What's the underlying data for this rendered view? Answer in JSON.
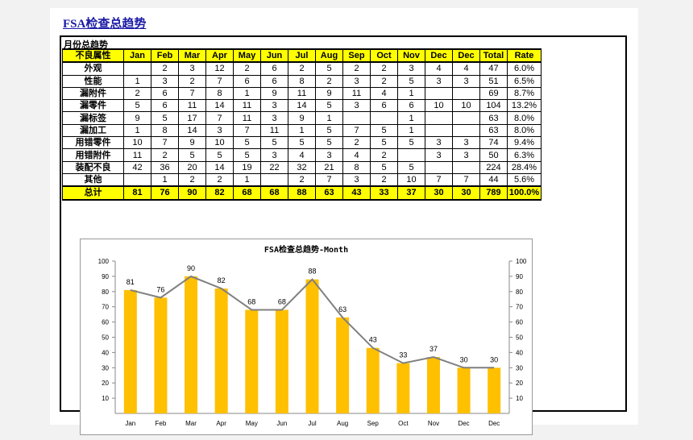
{
  "title": "FSA检查总趋势",
  "table": {
    "caption": "月份总趋势",
    "headers": [
      "不良属性",
      "Jan",
      "Feb",
      "Mar",
      "Apr",
      "May",
      "Jun",
      "Jul",
      "Aug",
      "Sep",
      "Oct",
      "Nov",
      "Dec",
      "Dec",
      "Total",
      "Rate"
    ],
    "rows": [
      [
        "外观",
        "",
        "2",
        "3",
        "12",
        "2",
        "6",
        "2",
        "5",
        "2",
        "2",
        "3",
        "4",
        "4",
        "47",
        "6.0%"
      ],
      [
        "性能",
        "1",
        "3",
        "2",
        "7",
        "6",
        "6",
        "8",
        "2",
        "3",
        "2",
        "5",
        "3",
        "3",
        "51",
        "6.5%"
      ],
      [
        "漏附件",
        "2",
        "6",
        "7",
        "8",
        "1",
        "9",
        "11",
        "9",
        "11",
        "4",
        "1",
        "",
        "",
        "69",
        "8.7%"
      ],
      [
        "漏零件",
        "5",
        "6",
        "11",
        "14",
        "11",
        "3",
        "14",
        "5",
        "3",
        "6",
        "6",
        "10",
        "10",
        "104",
        "13.2%"
      ],
      [
        "漏标签",
        "9",
        "5",
        "17",
        "7",
        "11",
        "3",
        "9",
        "1",
        "",
        "",
        "1",
        "",
        "",
        "63",
        "8.0%"
      ],
      [
        "漏加工",
        "1",
        "8",
        "14",
        "3",
        "7",
        "11",
        "1",
        "5",
        "7",
        "5",
        "1",
        "",
        "",
        "63",
        "8.0%"
      ],
      [
        "用错零件",
        "10",
        "7",
        "9",
        "10",
        "5",
        "5",
        "5",
        "5",
        "2",
        "5",
        "5",
        "3",
        "3",
        "74",
        "9.4%"
      ],
      [
        "用错附件",
        "11",
        "2",
        "5",
        "5",
        "5",
        "3",
        "4",
        "3",
        "4",
        "2",
        "",
        "3",
        "3",
        "50",
        "6.3%"
      ],
      [
        "装配不良",
        "42",
        "36",
        "20",
        "14",
        "19",
        "22",
        "32",
        "21",
        "8",
        "5",
        "5",
        "",
        "",
        "224",
        "28.4%"
      ],
      [
        "其他",
        "",
        "1",
        "2",
        "2",
        "1",
        "",
        "2",
        "7",
        "3",
        "2",
        "10",
        "7",
        "7",
        "44",
        "5.6%"
      ]
    ],
    "total": [
      "总计",
      "81",
      "76",
      "90",
      "82",
      "68",
      "68",
      "88",
      "63",
      "43",
      "33",
      "37",
      "30",
      "30",
      "789",
      "100.0%"
    ]
  },
  "chart_data": {
    "type": "bar",
    "title": "FSA检查总趋势-Month",
    "categories": [
      "Jan",
      "Feb",
      "Mar",
      "Apr",
      "May",
      "Jun",
      "Jul",
      "Aug",
      "Sep",
      "Oct",
      "Nov",
      "Dec",
      "Dec"
    ],
    "values": [
      81,
      76,
      90,
      82,
      68,
      68,
      88,
      63,
      43,
      33,
      37,
      30,
      30
    ],
    "line_values": [
      81,
      76,
      90,
      82,
      68,
      68,
      88,
      63,
      43,
      33,
      37,
      30,
      30
    ],
    "ylim": [
      0,
      100
    ],
    "yticks": [
      10,
      20,
      30,
      40,
      50,
      60,
      70,
      80,
      90,
      100
    ],
    "bar_color": "#ffc000",
    "line_color": "#808080"
  }
}
